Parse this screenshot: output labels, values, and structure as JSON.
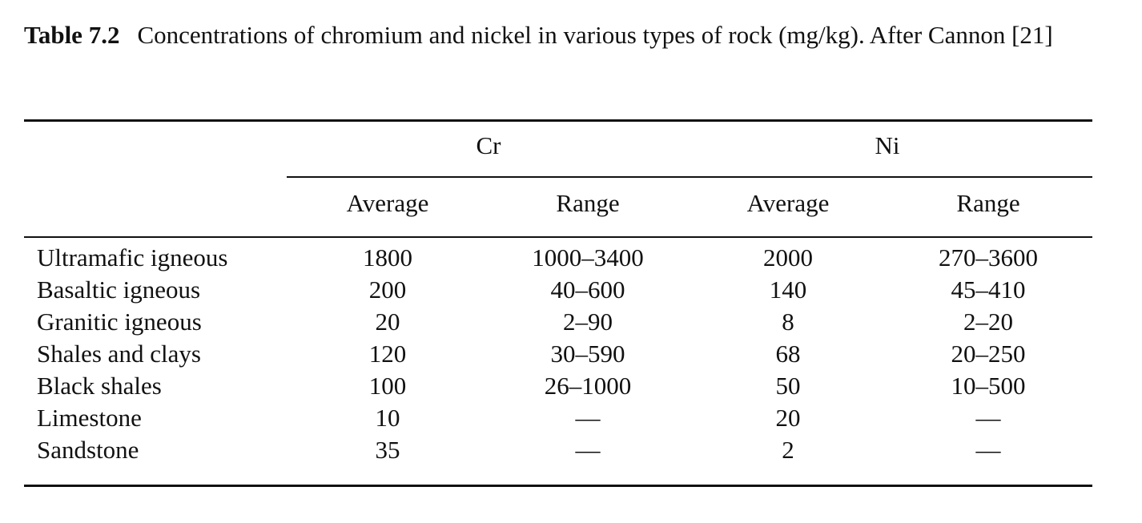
{
  "caption": {
    "label": "Table 7.2",
    "text": "Concentrations of chromium and nickel in various types of rock (mg/kg). After Cannon [21]"
  },
  "table": {
    "groups": [
      "Cr",
      "Ni"
    ],
    "subheaders": [
      "Average",
      "Range",
      "Average",
      "Range"
    ],
    "rows": [
      {
        "label": "Ultramafic igneous",
        "cr_avg": "1800",
        "cr_range": "1000–3400",
        "ni_avg": "2000",
        "ni_range": "270–3600"
      },
      {
        "label": "Basaltic igneous",
        "cr_avg": "200",
        "cr_range": "40–600",
        "ni_avg": "140",
        "ni_range": "45–410"
      },
      {
        "label": "Granitic igneous",
        "cr_avg": "20",
        "cr_range": "2–90",
        "ni_avg": "8",
        "ni_range": "2–20"
      },
      {
        "label": "Shales and clays",
        "cr_avg": "120",
        "cr_range": "30–590",
        "ni_avg": "68",
        "ni_range": "20–250"
      },
      {
        "label": "Black shales",
        "cr_avg": "100",
        "cr_range": "26–1000",
        "ni_avg": "50",
        "ni_range": "10–500"
      },
      {
        "label": "Limestone",
        "cr_avg": "10",
        "cr_range": "—",
        "ni_avg": "20",
        "ni_range": "—"
      },
      {
        "label": "Sandstone",
        "cr_avg": "35",
        "cr_range": "—",
        "ni_avg": "2",
        "ni_range": "—"
      }
    ]
  }
}
